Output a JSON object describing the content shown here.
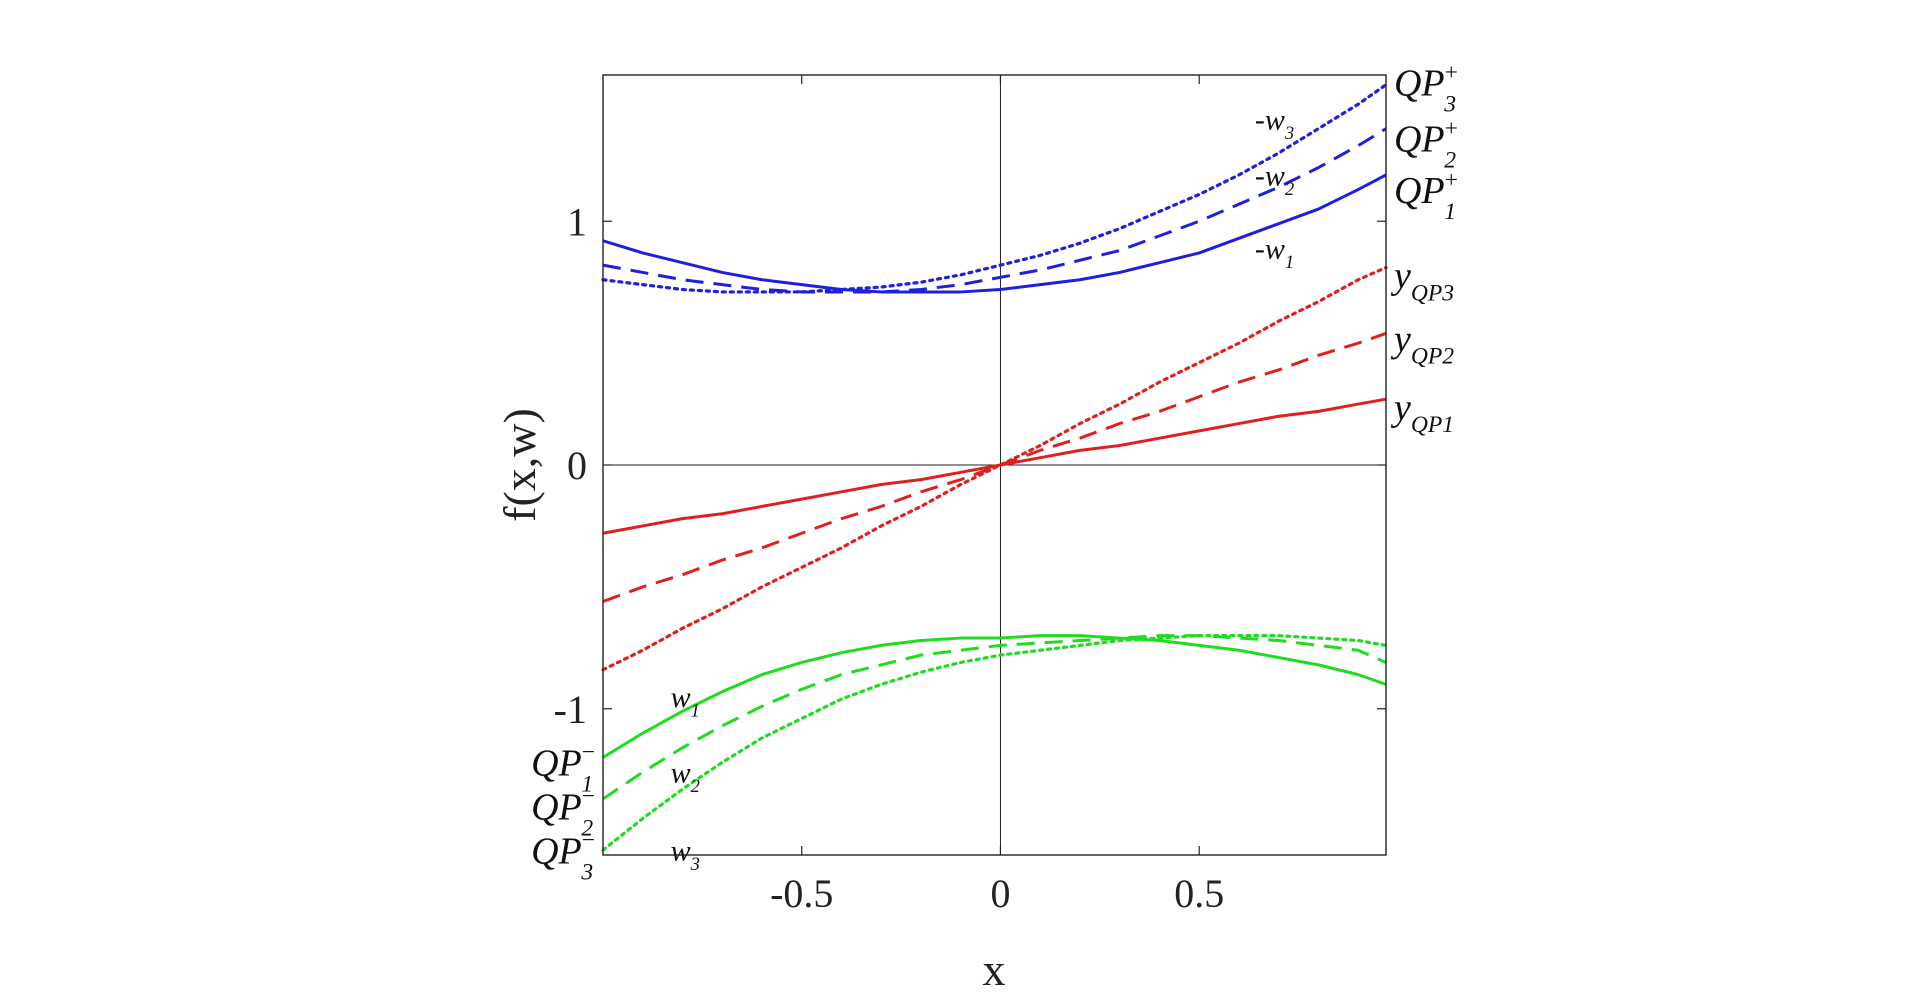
{
  "chart_data": {
    "type": "line",
    "title": "",
    "xlabel": "x",
    "ylabel": "f(x,w)",
    "xlim": [
      -1,
      0.97
    ],
    "ylim": [
      -1.6,
      1.6
    ],
    "grid": false,
    "x_ticks": [
      -0.5,
      0,
      0.5
    ],
    "x_tick_labels": [
      "-0.5",
      "0",
      "0.5"
    ],
    "y_ticks": [
      -1,
      0,
      1
    ],
    "y_tick_labels": [
      "-1",
      "0",
      "1"
    ],
    "colors": {
      "upper": "#1f1fe0",
      "middle": "#e01f1f",
      "lower": "#1fdc1f",
      "axis": "#222222"
    },
    "x": [
      -1,
      -0.9,
      -0.8,
      -0.7,
      -0.6,
      -0.5,
      -0.4,
      -0.3,
      -0.2,
      -0.1,
      0,
      0.1,
      0.2,
      0.3,
      0.4,
      0.5,
      0.6,
      0.7,
      0.8,
      0.9,
      0.97
    ],
    "series": [
      {
        "name": "QP1+",
        "group": "upper",
        "dash": "solid",
        "values": [
          0.92,
          0.87,
          0.83,
          0.79,
          0.76,
          0.74,
          0.72,
          0.71,
          0.71,
          0.71,
          0.72,
          0.74,
          0.76,
          0.79,
          0.83,
          0.87,
          0.93,
          0.99,
          1.05,
          1.13,
          1.19
        ]
      },
      {
        "name": "QP2+",
        "group": "upper",
        "dash": "dashed",
        "values": [
          0.82,
          0.79,
          0.76,
          0.74,
          0.72,
          0.71,
          0.71,
          0.71,
          0.72,
          0.74,
          0.77,
          0.8,
          0.84,
          0.88,
          0.94,
          1.0,
          1.07,
          1.14,
          1.22,
          1.31,
          1.38
        ]
      },
      {
        "name": "QP3+",
        "group": "upper",
        "dash": "dotted",
        "values": [
          0.76,
          0.74,
          0.72,
          0.71,
          0.71,
          0.71,
          0.72,
          0.73,
          0.75,
          0.78,
          0.82,
          0.86,
          0.91,
          0.97,
          1.04,
          1.11,
          1.19,
          1.28,
          1.38,
          1.48,
          1.56
        ]
      },
      {
        "name": "yQP1",
        "group": "middle",
        "dash": "solid",
        "values": [
          -0.28,
          -0.25,
          -0.22,
          -0.2,
          -0.17,
          -0.14,
          -0.11,
          -0.08,
          -0.06,
          -0.03,
          0,
          0.03,
          0.06,
          0.08,
          0.11,
          0.14,
          0.17,
          0.2,
          0.22,
          0.25,
          0.27
        ]
      },
      {
        "name": "yQP2",
        "group": "middle",
        "dash": "dashed",
        "values": [
          -0.56,
          -0.5,
          -0.45,
          -0.39,
          -0.34,
          -0.28,
          -0.22,
          -0.17,
          -0.11,
          -0.06,
          0,
          0.06,
          0.11,
          0.17,
          0.22,
          0.28,
          0.34,
          0.39,
          0.45,
          0.5,
          0.54
        ]
      },
      {
        "name": "yQP3",
        "group": "middle",
        "dash": "dotted",
        "values": [
          -0.84,
          -0.76,
          -0.67,
          -0.59,
          -0.5,
          -0.42,
          -0.34,
          -0.25,
          -0.17,
          -0.08,
          0,
          0.08,
          0.17,
          0.25,
          0.34,
          0.42,
          0.5,
          0.59,
          0.67,
          0.76,
          0.81
        ]
      },
      {
        "name": "QP1-",
        "group": "lower",
        "dash": "solid",
        "values": [
          -1.2,
          -1.1,
          -1.01,
          -0.93,
          -0.86,
          -0.81,
          -0.77,
          -0.74,
          -0.72,
          -0.71,
          -0.71,
          -0.7,
          -0.7,
          -0.71,
          -0.72,
          -0.74,
          -0.76,
          -0.79,
          -0.82,
          -0.86,
          -0.9
        ]
      },
      {
        "name": "QP2-",
        "group": "lower",
        "dash": "dashed",
        "values": [
          -1.37,
          -1.26,
          -1.16,
          -1.07,
          -0.99,
          -0.92,
          -0.86,
          -0.82,
          -0.78,
          -0.76,
          -0.74,
          -0.73,
          -0.72,
          -0.71,
          -0.7,
          -0.7,
          -0.71,
          -0.72,
          -0.74,
          -0.76,
          -0.81
        ]
      },
      {
        "name": "QP3-",
        "group": "lower",
        "dash": "dotted",
        "values": [
          -1.58,
          -1.45,
          -1.33,
          -1.22,
          -1.12,
          -1.04,
          -0.96,
          -0.9,
          -0.85,
          -0.81,
          -0.78,
          -0.76,
          -0.74,
          -0.72,
          -0.71,
          -0.7,
          -0.7,
          -0.7,
          -0.71,
          -0.72,
          -0.74
        ]
      }
    ],
    "annotations": [
      {
        "id": "upper-label-3",
        "text": "QP",
        "sub": "3",
        "sup": "+",
        "x": 0.99,
        "y": 1.57,
        "anchor": "start"
      },
      {
        "id": "upper-label-2",
        "text": "QP",
        "sub": "2",
        "sup": "+",
        "x": 0.99,
        "y": 1.34,
        "anchor": "start"
      },
      {
        "id": "upper-label-1",
        "text": "QP",
        "sub": "1",
        "sup": "+",
        "x": 0.99,
        "y": 1.13,
        "anchor": "start"
      },
      {
        "id": "y-label-3",
        "text": "y",
        "sub": "QP3",
        "sup": "",
        "x": 0.99,
        "y": 0.78,
        "anchor": "start"
      },
      {
        "id": "y-label-2",
        "text": "y",
        "sub": "QP2",
        "sup": "",
        "x": 0.99,
        "y": 0.52,
        "anchor": "start"
      },
      {
        "id": "y-label-1",
        "text": "y",
        "sub": "QP1",
        "sup": "",
        "x": 0.99,
        "y": 0.24,
        "anchor": "start"
      },
      {
        "id": "neg-w-label-3",
        "text": "-w",
        "sub": "3",
        "sup": "",
        "x": 0.64,
        "y": 1.42,
        "anchor": "start"
      },
      {
        "id": "neg-w-label-2",
        "text": "-w",
        "sub": "2",
        "sup": "",
        "x": 0.64,
        "y": 1.19,
        "anchor": "start"
      },
      {
        "id": "neg-w-label-1",
        "text": "-w",
        "sub": "1",
        "sup": "",
        "x": 0.64,
        "y": 0.89,
        "anchor": "start"
      },
      {
        "id": "w-label-1",
        "text": "w",
        "sub": "1",
        "sup": "",
        "x": -0.83,
        "y": -0.95,
        "anchor": "start"
      },
      {
        "id": "w-label-2",
        "text": "w",
        "sub": "2",
        "sup": "",
        "x": -0.83,
        "y": -1.26,
        "anchor": "start"
      },
      {
        "id": "w-label-3",
        "text": "w",
        "sub": "3",
        "sup": "",
        "x": -0.83,
        "y": -1.58,
        "anchor": "start"
      },
      {
        "id": "lower-label-1",
        "text": "QP",
        "sub": "1",
        "sup": "−",
        "x": -1.02,
        "y": -1.22,
        "anchor": "end"
      },
      {
        "id": "lower-label-2",
        "text": "QP",
        "sub": "2",
        "sup": "−",
        "x": -1.02,
        "y": -1.4,
        "anchor": "end"
      },
      {
        "id": "lower-label-3",
        "text": "QP",
        "sub": "3",
        "sup": "−",
        "x": -1.02,
        "y": -1.58,
        "anchor": "end"
      }
    ]
  }
}
